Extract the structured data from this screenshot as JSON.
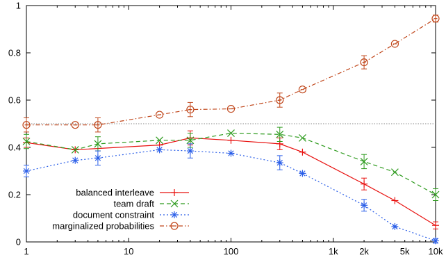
{
  "chart_data": {
    "type": "line",
    "title": "",
    "xlabel": "",
    "ylabel": "",
    "x_scale": "log",
    "xlim": [
      1,
      10000
    ],
    "ylim": [
      0,
      1
    ],
    "x_ticks": [
      {
        "value": 1,
        "label": "1"
      },
      {
        "value": 10,
        "label": "10"
      },
      {
        "value": 100,
        "label": "100"
      },
      {
        "value": 1000,
        "label": "1k"
      },
      {
        "value": 2000,
        "label": "2k"
      },
      {
        "value": 5000,
        "label": "5k"
      },
      {
        "value": 10000,
        "label": "10k"
      }
    ],
    "y_ticks": [
      {
        "value": 0,
        "label": "0"
      },
      {
        "value": 0.2,
        "label": "0.2"
      },
      {
        "value": 0.4,
        "label": "0.4"
      },
      {
        "value": 0.6,
        "label": "0.6"
      },
      {
        "value": 0.8,
        "label": "0.8"
      },
      {
        "value": 1,
        "label": "1"
      }
    ],
    "reference_line": {
      "y": 0.5,
      "style": "dotted",
      "color": "#888888"
    },
    "grid": false,
    "legend_position": "bottom-left",
    "series": [
      {
        "name": "balanced interleave",
        "color": "#e8100e",
        "marker": "plus",
        "line_style": "solid",
        "points": [
          {
            "x": 1,
            "y": 0.42,
            "err": 0.02
          },
          {
            "x": 3,
            "y": 0.39
          },
          {
            "x": 20,
            "y": 0.41
          },
          {
            "x": 40,
            "y": 0.44,
            "err": 0.03
          },
          {
            "x": 100,
            "y": 0.43
          },
          {
            "x": 300,
            "y": 0.415,
            "err": 0.025
          },
          {
            "x": 500,
            "y": 0.38
          },
          {
            "x": 2000,
            "y": 0.245,
            "err": 0.025
          },
          {
            "x": 4000,
            "y": 0.175
          },
          {
            "x": 10000,
            "y": 0.07,
            "err": 0.015
          }
        ]
      },
      {
        "name": "team draft",
        "color": "#2e9b1e",
        "marker": "x",
        "line_style": "dashed",
        "points": [
          {
            "x": 1,
            "y": 0.425,
            "err": 0.03
          },
          {
            "x": 3,
            "y": 0.39
          },
          {
            "x": 5,
            "y": 0.415,
            "err": 0.03
          },
          {
            "x": 20,
            "y": 0.43
          },
          {
            "x": 40,
            "y": 0.43,
            "err": 0.03
          },
          {
            "x": 100,
            "y": 0.46
          },
          {
            "x": 300,
            "y": 0.455,
            "err": 0.03
          },
          {
            "x": 500,
            "y": 0.44
          },
          {
            "x": 2000,
            "y": 0.34,
            "err": 0.03
          },
          {
            "x": 4000,
            "y": 0.295
          },
          {
            "x": 10000,
            "y": 0.2,
            "err": 0.025
          }
        ]
      },
      {
        "name": "document constraint",
        "color": "#2a5ee8",
        "marker": "star",
        "line_style": "dotted",
        "points": [
          {
            "x": 1,
            "y": 0.3,
            "err": 0.025
          },
          {
            "x": 3,
            "y": 0.345
          },
          {
            "x": 5,
            "y": 0.355,
            "err": 0.03
          },
          {
            "x": 20,
            "y": 0.39
          },
          {
            "x": 40,
            "y": 0.385,
            "err": 0.03
          },
          {
            "x": 100,
            "y": 0.375
          },
          {
            "x": 300,
            "y": 0.335,
            "err": 0.03
          },
          {
            "x": 500,
            "y": 0.29
          },
          {
            "x": 2000,
            "y": 0.155,
            "err": 0.025
          },
          {
            "x": 4000,
            "y": 0.065
          },
          {
            "x": 10000,
            "y": 0.005,
            "err": 0.01
          }
        ]
      },
      {
        "name": "marginalized probabilities",
        "color": "#c0461a",
        "marker": "circle",
        "line_style": "dash-dot",
        "points": [
          {
            "x": 1,
            "y": 0.495,
            "err": 0.03
          },
          {
            "x": 3,
            "y": 0.495
          },
          {
            "x": 5,
            "y": 0.495,
            "err": 0.03
          },
          {
            "x": 20,
            "y": 0.538
          },
          {
            "x": 40,
            "y": 0.56,
            "err": 0.03
          },
          {
            "x": 100,
            "y": 0.563
          },
          {
            "x": 300,
            "y": 0.6,
            "err": 0.03
          },
          {
            "x": 500,
            "y": 0.645
          },
          {
            "x": 2000,
            "y": 0.76,
            "err": 0.028
          },
          {
            "x": 4000,
            "y": 0.838
          },
          {
            "x": 10000,
            "y": 0.945,
            "err": 0.015
          }
        ]
      }
    ]
  }
}
